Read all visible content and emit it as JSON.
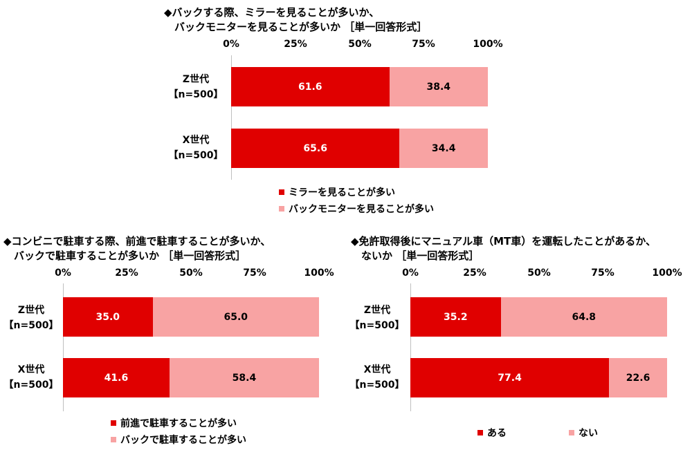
{
  "colors": {
    "primary": "#e00000",
    "secondary": "#f8a3a3",
    "axis": "#bfbfbf"
  },
  "chart_data": [
    {
      "type": "bar",
      "orientation": "horizontal",
      "stacked": true,
      "title": "◆バックする際、ミラーを見ることが多いか、\n　バックモニターを見ることが多いか ［単一回答形式］",
      "ticks": [
        "0%",
        "25%",
        "50%",
        "75%",
        "100%"
      ],
      "xlim": [
        0,
        100
      ],
      "categories": [
        "Z世代\n【n=500】",
        "X世代\n【n=500】"
      ],
      "series": [
        {
          "name": "ミラーを見ることが多い",
          "values": [
            61.6,
            65.6
          ],
          "labels": [
            "61.6",
            "65.6"
          ]
        },
        {
          "name": "バックモニターを見ることが多い",
          "values": [
            38.4,
            34.4
          ],
          "labels": [
            "38.4",
            "34.4"
          ]
        }
      ],
      "legend_position": "bottom"
    },
    {
      "type": "bar",
      "orientation": "horizontal",
      "stacked": true,
      "title": "◆コンビニで駐車する際、前進で駐車することが多いか、\n　バックで駐車することが多いか ［単一回答形式］",
      "ticks": [
        "0%",
        "25%",
        "50%",
        "75%",
        "100%"
      ],
      "xlim": [
        0,
        100
      ],
      "categories": [
        "Z世代\n【n=500】",
        "X世代\n【n=500】"
      ],
      "series": [
        {
          "name": "前進で駐車することが多い",
          "values": [
            35.0,
            41.6
          ],
          "labels": [
            "35.0",
            "41.6"
          ]
        },
        {
          "name": "バックで駐車することが多い",
          "values": [
            65.0,
            58.4
          ],
          "labels": [
            "65.0",
            "58.4"
          ]
        }
      ],
      "legend_position": "bottom"
    },
    {
      "type": "bar",
      "orientation": "horizontal",
      "stacked": true,
      "title": "◆免許取得後にマニュアル車（MT車）を運転したことがあるか、\n　ないか ［単一回答形式］",
      "ticks": [
        "0%",
        "25%",
        "50%",
        "75%",
        "100%"
      ],
      "xlim": [
        0,
        100
      ],
      "categories": [
        "Z世代\n【n=500】",
        "X世代\n【n=500】"
      ],
      "series": [
        {
          "name": "ある",
          "values": [
            35.2,
            77.4
          ],
          "labels": [
            "35.2",
            "77.4"
          ]
        },
        {
          "name": "ない",
          "values": [
            64.8,
            22.6
          ],
          "labels": [
            "64.8",
            "22.6"
          ]
        }
      ],
      "legend_position": "bottom"
    }
  ]
}
